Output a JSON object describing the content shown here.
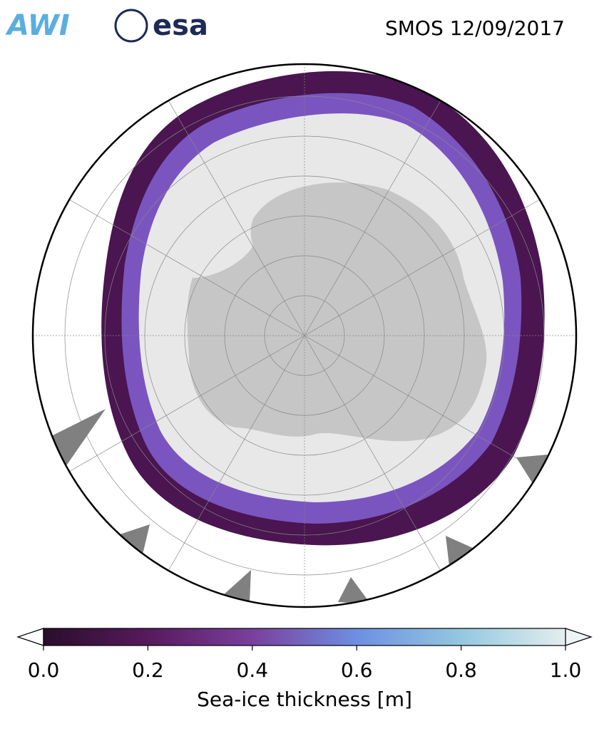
{
  "header": {
    "logos": [
      "AWI",
      "esa"
    ],
    "title": "SMOS 12/09/2017"
  },
  "colorbar": {
    "label": "Sea-ice thickness [m]",
    "lim": [
      0,
      1
    ],
    "ticks": [
      {
        "value": 0,
        "label": "0.0"
      },
      {
        "value": 0.2,
        "label": "0.2"
      },
      {
        "value": 0.4,
        "label": "0.4"
      },
      {
        "value": 0.6,
        "label": "0.6"
      },
      {
        "value": 0.8,
        "label": "0.8"
      },
      {
        "value": 1,
        "label": "1.0"
      }
    ],
    "colors": [
      "#2a0d2c",
      "#571a5c",
      "#7a3f9e",
      "#6e8fe2",
      "#93c8e0",
      "#e4eeee"
    ]
  }
}
